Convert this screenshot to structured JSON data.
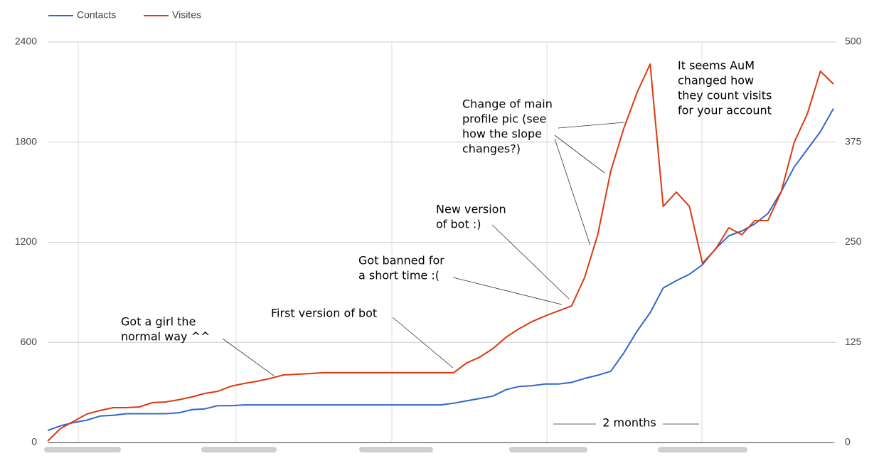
{
  "chart_data": {
    "type": "line",
    "categories": [
      null,
      null,
      null,
      null,
      null,
      null,
      null,
      null,
      null,
      null,
      null,
      null,
      null,
      null,
      null,
      null,
      null,
      null,
      null,
      null,
      null,
      null,
      null,
      null,
      null,
      null,
      null,
      null,
      null,
      null,
      null,
      null,
      null,
      null,
      null,
      null,
      null,
      null,
      null,
      null,
      null,
      null,
      null,
      null,
      null,
      null,
      null,
      null,
      null,
      null,
      null,
      null,
      null,
      null,
      null,
      null,
      null,
      null,
      null,
      null,
      null
    ],
    "series": [
      {
        "name": "Contacts",
        "color": "#3366cc",
        "axis": "y2",
        "values": [
          15,
          21,
          25,
          28,
          33,
          34,
          36,
          36,
          36,
          36,
          37,
          41,
          42,
          46,
          46,
          47,
          47,
          47,
          47,
          47,
          47,
          47,
          47,
          47,
          47,
          47,
          47,
          47,
          47,
          47,
          47,
          49,
          52,
          55,
          58,
          66,
          70,
          71,
          73,
          73,
          75,
          80,
          84,
          89,
          112,
          139,
          162,
          193,
          202,
          210,
          222,
          242,
          258,
          264,
          273,
          286,
          313,
          344,
          366,
          388,
          417
        ]
      },
      {
        "name": "Visites",
        "color": "#dc3912",
        "values": [
          9,
          85,
          128,
          171,
          192,
          209,
          209,
          213,
          239,
          243,
          256,
          273,
          294,
          307,
          337,
          354,
          367,
          384,
          405,
          409,
          413,
          418,
          418,
          418,
          418,
          418,
          418,
          418,
          418,
          418,
          418,
          418,
          477,
          512,
          563,
          631,
          682,
          725,
          759,
          789,
          818,
          989,
          1245,
          1628,
          1884,
          2097,
          2268,
          1415,
          1500,
          1415,
          1074,
          1159,
          1287,
          1245,
          1330,
          1330,
          1500,
          1799,
          1969,
          2225,
          2148
        ]
      }
    ],
    "ylim": [
      0,
      2400
    ],
    "yticks": [
      0,
      600,
      1200,
      1800,
      2400
    ],
    "y2lim": [
      0,
      500
    ],
    "y2ticks": [
      0,
      125,
      250,
      375,
      500
    ],
    "grid": true,
    "legend": "top-left",
    "annotations": [
      {
        "lines": [
          "Got a girl the",
          "normal way ^^"
        ]
      },
      {
        "lines": [
          "First version of bot"
        ]
      },
      {
        "lines": [
          "Got banned for",
          "a short time :("
        ]
      },
      {
        "lines": [
          "New version",
          "of bot :)"
        ]
      },
      {
        "lines": [
          "Change of main",
          "profile pic (see",
          "how the slope",
          "changes?)"
        ]
      },
      {
        "lines": [
          "It seems AuM",
          "changed how",
          "they count visits",
          "for your account"
        ]
      },
      {
        "lines": [
          "2 months"
        ]
      }
    ]
  }
}
